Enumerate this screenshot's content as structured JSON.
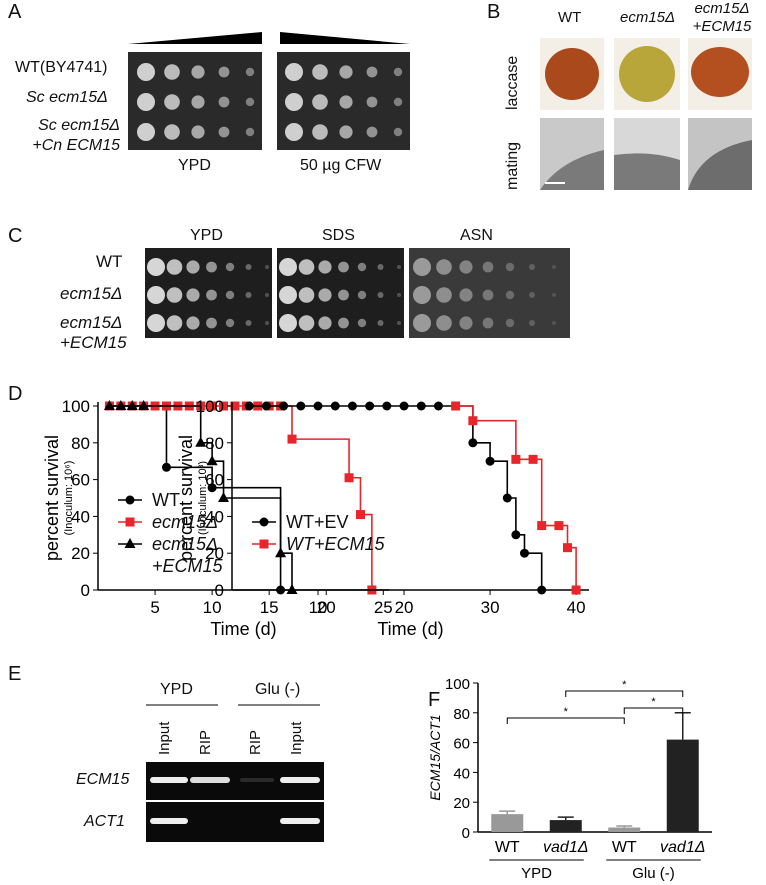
{
  "figure": {
    "panel_labels": [
      "A",
      "B",
      "C",
      "D",
      "E",
      "F"
    ],
    "A": {
      "rows": [
        "WT(BY4741)",
        "Sc ecm15Δ",
        "Sc ecm15Δ +Cn ECM15"
      ],
      "conditions": [
        "YPD",
        "50 µg CFW"
      ]
    },
    "B": {
      "columns": [
        "WT",
        "ecm15Δ",
        "ecm15Δ +ECM15"
      ],
      "rows": [
        "laccase",
        "mating"
      ]
    },
    "C": {
      "conditions": [
        "YPD",
        "SDS",
        "ASN"
      ],
      "rows": [
        "WT",
        "ecm15Δ",
        "ecm15Δ +ECM15"
      ]
    },
    "E": {
      "groups": [
        "YPD",
        "Glu (-)"
      ],
      "lanes": [
        "Input",
        "RIP",
        "RIP",
        "Input"
      ],
      "rows": [
        "ECM15",
        "ACT1"
      ]
    }
  },
  "chart_data": [
    {
      "type": "step",
      "xlabel": "Time (d)",
      "ylabel": "percent survival",
      "ylabel_note": "(Inoculum: 10⁶)",
      "xlim": [
        0,
        25.5
      ],
      "xticks": [
        5,
        10,
        15,
        20,
        25
      ],
      "ylim": [
        0,
        100
      ],
      "yticks": [
        0,
        20,
        40,
        60,
        80,
        100
      ],
      "legend": "lower left",
      "series": [
        {
          "name": "WT",
          "color": "#000000",
          "marker": "circle",
          "x": [
            1,
            2,
            3,
            4,
            5,
            6,
            10,
            16
          ],
          "values": [
            100,
            100,
            100,
            100,
            100,
            66.7,
            55.6,
            0
          ]
        },
        {
          "name": "ecm15Δ",
          "color": "#e8252b",
          "marker": "square",
          "x": [
            1,
            2,
            3,
            4,
            5,
            6,
            7,
            8,
            9,
            10,
            11,
            12,
            13,
            14,
            15,
            16,
            17,
            22,
            23,
            24
          ],
          "values": [
            100,
            100,
            100,
            100,
            100,
            100,
            100,
            100,
            100,
            100,
            100,
            100,
            100,
            100,
            100,
            100,
            82,
            61,
            41,
            0
          ]
        },
        {
          "name": "ecm15Δ +ECM15",
          "color": "#000000",
          "marker": "triangle",
          "x": [
            1,
            2,
            3,
            4,
            9,
            10,
            11,
            16,
            17
          ],
          "values": [
            100,
            100,
            100,
            100,
            80,
            70,
            50,
            20,
            0
          ]
        }
      ]
    },
    {
      "type": "step",
      "xlabel": "Time (d)",
      "ylabel": "percent survival",
      "ylabel_note": "(Inoculum: 10³)",
      "xlim": [
        0,
        41.5
      ],
      "xticks": [
        10,
        20,
        30,
        40
      ],
      "ylim": [
        0,
        100
      ],
      "yticks": [
        0,
        20,
        40,
        60,
        80,
        100
      ],
      "legend": "lower left",
      "series": [
        {
          "name": "WT+EV",
          "color": "#000000",
          "marker": "circle",
          "x": [
            2,
            4,
            6,
            8,
            10,
            12,
            14,
            16,
            18,
            20,
            22,
            24,
            26,
            28,
            30,
            32,
            33,
            34,
            36
          ],
          "values": [
            100,
            100,
            100,
            100,
            100,
            100,
            100,
            100,
            100,
            100,
            100,
            100,
            100,
            80,
            70,
            50,
            30,
            20,
            0
          ]
        },
        {
          "name": "WT+ECM15",
          "color": "#e8252b",
          "marker": "square",
          "x": [
            26,
            28,
            33,
            35,
            36,
            38,
            39,
            40
          ],
          "values": [
            100,
            92,
            71,
            71,
            35,
            35,
            23,
            0
          ]
        }
      ]
    },
    {
      "type": "bar",
      "ylabel": "ECM15/ACT1",
      "categories": [
        "WT",
        "vad1Δ",
        "WT",
        "vad1Δ"
      ],
      "groups": [
        "YPD",
        "Glu (-)"
      ],
      "values": [
        12,
        8,
        3,
        62
      ],
      "errors": [
        2,
        2,
        1,
        18
      ],
      "colors": [
        "#999999",
        "#222222",
        "#999999",
        "#222222"
      ],
      "ylim": [
        0,
        100
      ],
      "yticks": [
        0,
        20,
        40,
        60,
        80,
        100
      ],
      "significance": [
        "*",
        "*",
        "*"
      ]
    }
  ]
}
